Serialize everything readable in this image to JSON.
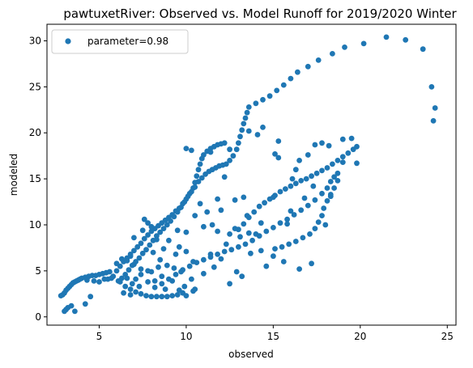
{
  "chart_data": {
    "type": "scatter",
    "title": "pawtuxetRiver: Observed vs. Model Runoff for 2019/2020 Winter",
    "xlabel": "observed",
    "ylabel": "modeled",
    "xlim": [
      2.0,
      25.5
    ],
    "ylim": [
      -0.9,
      31.8
    ],
    "xticks": [
      5,
      10,
      15,
      20,
      25
    ],
    "yticks": [
      0,
      5,
      10,
      15,
      20,
      25,
      30
    ],
    "grid": false,
    "legend_position": "upper-left",
    "colors": {
      "points": "#1f77b4",
      "axes": "#000000",
      "background": "#ffffff"
    },
    "series": [
      {
        "name": "parameter=0.98",
        "points": [
          [
            2.8,
            2.3
          ],
          [
            2.9,
            2.4
          ],
          [
            3.0,
            2.6
          ],
          [
            3.1,
            2.9
          ],
          [
            3.2,
            3.1
          ],
          [
            3.3,
            3.3
          ],
          [
            3.4,
            3.5
          ],
          [
            3.5,
            3.7
          ],
          [
            3.6,
            3.8
          ],
          [
            3.7,
            3.9
          ],
          [
            3.8,
            4.0
          ],
          [
            3.9,
            4.1
          ],
          [
            4.0,
            4.2
          ],
          [
            4.2,
            4.3
          ],
          [
            4.4,
            4.4
          ],
          [
            4.6,
            4.5
          ],
          [
            4.8,
            4.5
          ],
          [
            5.0,
            4.6
          ],
          [
            5.2,
            4.7
          ],
          [
            5.4,
            4.8
          ],
          [
            5.6,
            4.9
          ],
          [
            3.0,
            0.6
          ],
          [
            3.1,
            0.8
          ],
          [
            3.2,
            1.0
          ],
          [
            3.4,
            1.2
          ],
          [
            3.6,
            0.6
          ],
          [
            4.2,
            1.4
          ],
          [
            4.5,
            2.2
          ],
          [
            5.0,
            3.8
          ],
          [
            5.5,
            4.1
          ],
          [
            5.8,
            4.4
          ],
          [
            6.0,
            5.0
          ],
          [
            6.2,
            5.5
          ],
          [
            6.4,
            6.0
          ],
          [
            6.6,
            6.4
          ],
          [
            6.8,
            6.8
          ],
          [
            7.0,
            7.2
          ],
          [
            7.2,
            7.6
          ],
          [
            7.4,
            8.0
          ],
          [
            7.6,
            8.5
          ],
          [
            7.8,
            8.9
          ],
          [
            8.0,
            9.3
          ],
          [
            8.2,
            9.6
          ],
          [
            8.4,
            9.9
          ],
          [
            8.6,
            10.2
          ],
          [
            8.8,
            10.5
          ],
          [
            9.0,
            10.8
          ],
          [
            9.2,
            11.1
          ],
          [
            9.4,
            11.5
          ],
          [
            9.6,
            11.8
          ],
          [
            9.8,
            12.3
          ],
          [
            10.0,
            12.8
          ],
          [
            10.2,
            13.4
          ],
          [
            10.4,
            14.0
          ],
          [
            10.5,
            14.6
          ],
          [
            10.6,
            15.3
          ],
          [
            10.7,
            16.0
          ],
          [
            10.8,
            16.6
          ],
          [
            10.9,
            17.2
          ],
          [
            11.0,
            17.6
          ],
          [
            11.2,
            18.0
          ],
          [
            11.4,
            18.3
          ],
          [
            11.6,
            18.5
          ],
          [
            11.8,
            18.7
          ],
          [
            12.0,
            18.8
          ],
          [
            12.2,
            18.9
          ],
          [
            6.1,
            3.9
          ],
          [
            6.3,
            4.2
          ],
          [
            6.5,
            4.6
          ],
          [
            6.7,
            5.1
          ],
          [
            6.9,
            5.6
          ],
          [
            7.1,
            6.0
          ],
          [
            7.3,
            6.4
          ],
          [
            7.5,
            6.9
          ],
          [
            7.7,
            7.3
          ],
          [
            7.9,
            7.8
          ],
          [
            8.1,
            8.3
          ],
          [
            8.3,
            8.8
          ],
          [
            8.5,
            9.2
          ],
          [
            8.7,
            9.6
          ],
          [
            8.9,
            10.0
          ],
          [
            9.1,
            10.4
          ],
          [
            9.3,
            10.9
          ],
          [
            9.5,
            11.4
          ],
          [
            9.7,
            11.9
          ],
          [
            9.9,
            12.5
          ],
          [
            10.1,
            13.1
          ],
          [
            10.3,
            13.6
          ],
          [
            10.5,
            14.1
          ],
          [
            10.7,
            14.7
          ],
          [
            10.9,
            15.1
          ],
          [
            11.1,
            15.5
          ],
          [
            11.3,
            15.8
          ],
          [
            11.5,
            16.0
          ],
          [
            11.7,
            16.2
          ],
          [
            11.9,
            16.4
          ],
          [
            12.1,
            16.5
          ],
          [
            12.3,
            16.6
          ],
          [
            12.5,
            17.0
          ],
          [
            12.7,
            17.5
          ],
          [
            12.9,
            18.2
          ],
          [
            13.0,
            18.9
          ],
          [
            13.1,
            19.6
          ],
          [
            13.2,
            20.3
          ],
          [
            13.3,
            21.0
          ],
          [
            13.4,
            21.6
          ],
          [
            13.5,
            22.2
          ],
          [
            13.6,
            22.8
          ],
          [
            14.0,
            23.2
          ],
          [
            14.4,
            23.6
          ],
          [
            14.8,
            24.0
          ],
          [
            15.2,
            24.6
          ],
          [
            15.6,
            25.2
          ],
          [
            16.0,
            25.9
          ],
          [
            16.4,
            26.6
          ],
          [
            17.0,
            27.2
          ],
          [
            17.6,
            27.9
          ],
          [
            18.4,
            28.6
          ],
          [
            19.1,
            29.3
          ],
          [
            20.2,
            29.7
          ],
          [
            21.5,
            30.4
          ],
          [
            22.6,
            30.1
          ],
          [
            23.6,
            29.1
          ],
          [
            24.1,
            25.0
          ],
          [
            24.3,
            22.7
          ],
          [
            24.2,
            21.3
          ],
          [
            6.2,
            3.8
          ],
          [
            6.5,
            3.3
          ],
          [
            6.8,
            3.0
          ],
          [
            7.1,
            2.7
          ],
          [
            7.4,
            2.5
          ],
          [
            7.7,
            2.3
          ],
          [
            8.0,
            2.2
          ],
          [
            8.3,
            2.2
          ],
          [
            8.6,
            2.2
          ],
          [
            8.9,
            2.2
          ],
          [
            9.2,
            2.3
          ],
          [
            9.5,
            2.4
          ],
          [
            9.8,
            2.6
          ],
          [
            6.4,
            2.6
          ],
          [
            6.8,
            2.4
          ],
          [
            7.3,
            3.3
          ],
          [
            7.8,
            3.8
          ],
          [
            8.2,
            3.2
          ],
          [
            8.6,
            3.6
          ],
          [
            9.0,
            4.1
          ],
          [
            9.4,
            4.6
          ],
          [
            9.8,
            5.1
          ],
          [
            10.2,
            5.5
          ],
          [
            10.6,
            5.9
          ],
          [
            11.0,
            6.2
          ],
          [
            11.4,
            6.5
          ],
          [
            11.8,
            6.8
          ],
          [
            12.2,
            7.1
          ],
          [
            12.6,
            7.3
          ],
          [
            13.0,
            7.6
          ],
          [
            13.4,
            7.9
          ],
          [
            13.8,
            8.3
          ],
          [
            14.2,
            8.8
          ],
          [
            14.6,
            9.3
          ],
          [
            15.0,
            9.7
          ],
          [
            15.4,
            10.2
          ],
          [
            15.8,
            10.6
          ],
          [
            16.2,
            11.1
          ],
          [
            16.6,
            11.6
          ],
          [
            17.0,
            12.1
          ],
          [
            17.4,
            12.7
          ],
          [
            17.8,
            13.4
          ],
          [
            18.1,
            14.0
          ],
          [
            18.3,
            14.7
          ],
          [
            18.5,
            15.2
          ],
          [
            18.7,
            15.6
          ],
          [
            13.0,
            9.5
          ],
          [
            13.3,
            10.1
          ],
          [
            13.6,
            10.8
          ],
          [
            13.9,
            11.4
          ],
          [
            14.2,
            12.0
          ],
          [
            14.5,
            12.4
          ],
          [
            14.8,
            12.8
          ],
          [
            15.1,
            13.2
          ],
          [
            15.4,
            13.6
          ],
          [
            15.7,
            13.9
          ],
          [
            16.0,
            14.2
          ],
          [
            16.3,
            14.5
          ],
          [
            16.6,
            14.8
          ],
          [
            16.9,
            15.0
          ],
          [
            17.2,
            15.3
          ],
          [
            17.5,
            15.6
          ],
          [
            17.8,
            15.9
          ],
          [
            18.1,
            16.2
          ],
          [
            18.4,
            16.6
          ],
          [
            18.7,
            17.0
          ],
          [
            19.0,
            17.4
          ],
          [
            19.3,
            17.8
          ],
          [
            19.6,
            18.2
          ],
          [
            19.8,
            18.5
          ],
          [
            12.5,
            9.0
          ],
          [
            12.8,
            9.6
          ],
          [
            13.1,
            8.7
          ],
          [
            13.5,
            11.0
          ],
          [
            14.3,
            10.2
          ],
          [
            15.1,
            7.4
          ],
          [
            15.5,
            7.6
          ],
          [
            15.9,
            7.9
          ],
          [
            16.3,
            8.2
          ],
          [
            16.7,
            8.6
          ],
          [
            17.1,
            9.0
          ],
          [
            17.4,
            9.6
          ],
          [
            17.6,
            10.3
          ],
          [
            17.8,
            11.0
          ],
          [
            17.9,
            11.8
          ],
          [
            18.1,
            12.6
          ],
          [
            18.3,
            13.3
          ],
          [
            18.5,
            14.0
          ],
          [
            18.7,
            14.8
          ],
          [
            17.4,
            18.7
          ],
          [
            17.8,
            18.9
          ],
          [
            18.2,
            18.6
          ],
          [
            19.0,
            19.3
          ],
          [
            19.5,
            19.4
          ],
          [
            19.8,
            16.7
          ],
          [
            19.0,
            16.8
          ],
          [
            16.5,
            5.2
          ],
          [
            17.2,
            5.8
          ],
          [
            18.0,
            10.0
          ],
          [
            18.3,
            13.1
          ],
          [
            15.0,
            13.0
          ],
          [
            15.8,
            10.1
          ],
          [
            16.1,
            15.0
          ],
          [
            16.3,
            16.0
          ],
          [
            14.1,
            19.8
          ],
          [
            14.4,
            20.6
          ],
          [
            13.6,
            20.2
          ],
          [
            15.3,
            19.1
          ],
          [
            15.1,
            17.7
          ],
          [
            15.3,
            17.3
          ],
          [
            12.5,
            18.2
          ],
          [
            11.4,
            17.9
          ],
          [
            10.3,
            18.1
          ],
          [
            10.0,
            18.3
          ],
          [
            12.2,
            15.2
          ],
          [
            10.8,
            12.3
          ],
          [
            11.8,
            12.8
          ],
          [
            12.8,
            12.7
          ],
          [
            13.3,
            13.0
          ],
          [
            10.5,
            11.0
          ],
          [
            11.2,
            11.4
          ],
          [
            12.0,
            11.6
          ],
          [
            8.0,
            9.8
          ],
          [
            8.3,
            8.4
          ],
          [
            7.6,
            10.6
          ],
          [
            7.8,
            10.2
          ],
          [
            9.5,
            9.4
          ],
          [
            10.0,
            9.2
          ],
          [
            11.0,
            9.8
          ],
          [
            11.5,
            10.0
          ],
          [
            13.2,
            4.4
          ],
          [
            12.9,
            4.9
          ],
          [
            14.6,
            5.5
          ],
          [
            12.5,
            3.6
          ],
          [
            10.5,
            3.0
          ],
          [
            10.3,
            4.1
          ],
          [
            11.4,
            6.8
          ],
          [
            12.3,
            7.9
          ],
          [
            13.7,
            6.9
          ],
          [
            14.3,
            7.2
          ],
          [
            15.0,
            6.6
          ],
          [
            15.6,
            6.0
          ],
          [
            6.0,
            5.8
          ],
          [
            6.3,
            6.3
          ],
          [
            6.6,
            6.1
          ],
          [
            7.0,
            5.7
          ],
          [
            7.4,
            5.2
          ],
          [
            7.8,
            5.0
          ],
          [
            8.4,
            5.4
          ],
          [
            8.9,
            5.6
          ],
          [
            9.3,
            5.3
          ],
          [
            9.7,
            4.9
          ],
          [
            6.6,
            4.2
          ],
          [
            7.4,
            4.6
          ],
          [
            8.0,
            4.9
          ],
          [
            8.6,
            4.4
          ],
          [
            9.2,
            3.9
          ],
          [
            9.9,
            3.3
          ],
          [
            6.8,
            6.6
          ],
          [
            7.0,
            8.6
          ],
          [
            7.5,
            9.4
          ],
          [
            9.0,
            8.3
          ],
          [
            9.6,
            7.6
          ],
          [
            10.0,
            7.1
          ],
          [
            11.0,
            4.7
          ],
          [
            11.6,
            5.4
          ],
          [
            12.0,
            6.3
          ],
          [
            8.5,
            6.2
          ],
          [
            9.4,
            6.8
          ],
          [
            10.4,
            6.0
          ],
          [
            7.1,
            4.1
          ],
          [
            8.2,
            3.9
          ],
          [
            8.8,
            3.0
          ],
          [
            9.6,
            2.9
          ],
          [
            10.4,
            2.8
          ],
          [
            10.0,
            2.3
          ],
          [
            6.9,
            3.6
          ],
          [
            5.3,
            4.1
          ],
          [
            4.7,
            3.9
          ],
          [
            4.3,
            4.0
          ],
          [
            5.7,
            4.2
          ],
          [
            8.1,
            7.0
          ],
          [
            8.7,
            7.4
          ],
          [
            11.8,
            9.3
          ],
          [
            13.6,
            9.1
          ],
          [
            14.0,
            9.0
          ],
          [
            16.0,
            11.5
          ],
          [
            16.8,
            12.9
          ],
          [
            17.3,
            14.2
          ],
          [
            17.0,
            17.6
          ],
          [
            16.5,
            17.0
          ]
        ]
      }
    ]
  }
}
